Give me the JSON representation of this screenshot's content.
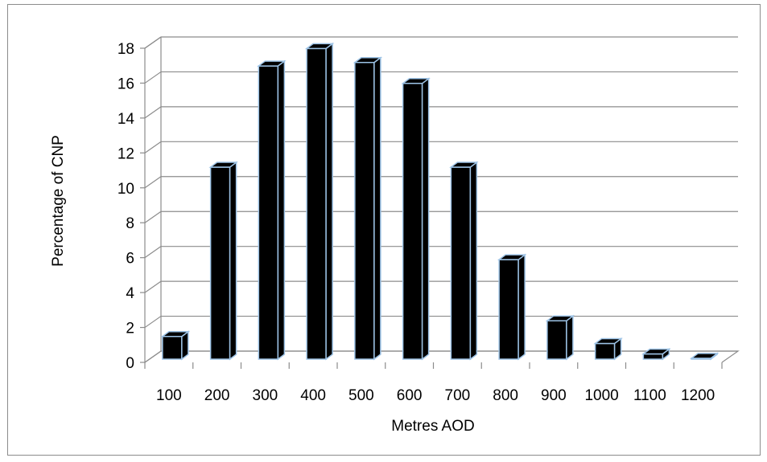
{
  "chart_data": {
    "type": "bar",
    "title": "",
    "xlabel": "Metres AOD",
    "ylabel": "Percentage of CNP",
    "categories": [
      "100",
      "200",
      "300",
      "400",
      "500",
      "600",
      "700",
      "800",
      "900",
      "1000",
      "1100",
      "1200"
    ],
    "values": [
      1.3,
      11.0,
      16.8,
      17.8,
      17.0,
      15.8,
      11.0,
      5.7,
      2.2,
      0.9,
      0.3,
      0.05
    ],
    "ylim": [
      0,
      18
    ],
    "yticks": [
      "0",
      "2",
      "4",
      "6",
      "8",
      "10",
      "12",
      "14",
      "16",
      "18"
    ],
    "grid": true,
    "legend": "none",
    "bar_fill": "#000000",
    "bar_edge": "#9dc3e6",
    "gridline_color": "#8c8c8c"
  }
}
